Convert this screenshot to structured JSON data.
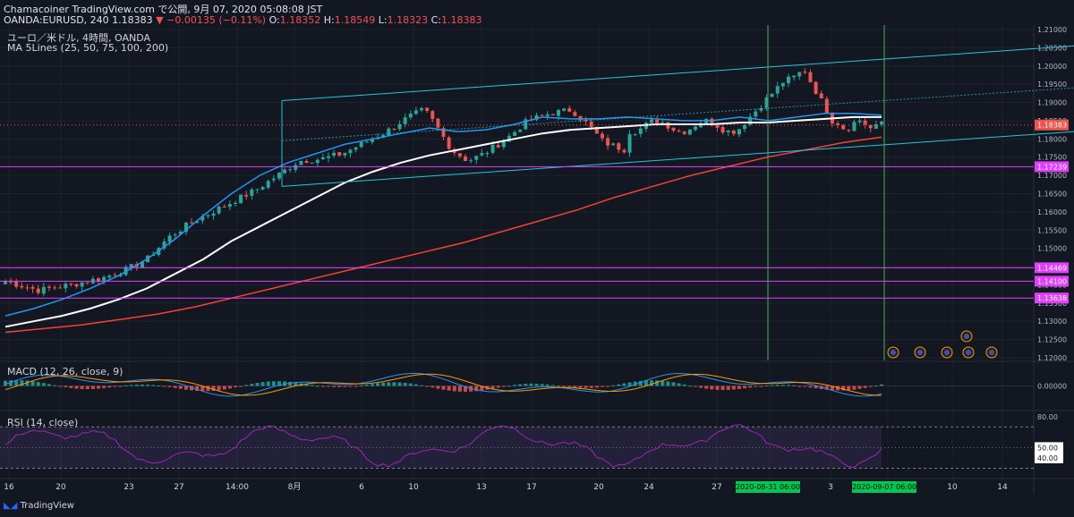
{
  "header": {
    "line1": "Chamacoiner TradingView.com で公開, 9月 07, 2020 05:08:08 JST",
    "symbol": "OANDA:EURUSD, 240",
    "last": "1.18383",
    "change": "▼ −0.00135 (−0.11%)",
    "o_label": "O:",
    "o": "1.18352",
    "h_label": "H:",
    "h": "1.18549",
    "l_label": "L:",
    "l": "1.18323",
    "c_label": "C:",
    "c": "1.18383"
  },
  "main": {
    "title": "ユーロ／米ドル, 4時間, OANDA",
    "indicator": "MA 5Lines (25, 50, 75, 100, 200)"
  },
  "macd_label": "MACD (12, 26, close, 9)",
  "rsi_label": "RSI (14, close)",
  "footer": {
    "brand": "TradingView"
  },
  "colors": {
    "background": "#131722",
    "up": "#26a69a",
    "down": "#ef5350",
    "ma_blue": "#2196f3",
    "ma_white": "#ffffff",
    "ma_red": "#f44336",
    "channel": "#26c6da",
    "horizontal": "#e040fb",
    "vertical": "#4caf50",
    "rsi": "#9c27b0"
  },
  "chart_data": [
    {
      "type": "candlestick",
      "name": "price",
      "y_ticks": [
        "1.21000",
        "1.20500",
        "1.20000",
        "1.19500",
        "1.19000",
        "1.18500",
        "1.18000",
        "1.17500",
        "1.17000",
        "1.16500",
        "1.16000",
        "1.15500",
        "1.15000",
        "1.14500",
        "1.14000",
        "1.13500",
        "1.13000",
        "1.12500",
        "1.12000"
      ],
      "ylim": [
        1.12,
        1.21
      ],
      "x_ticks": [
        "16",
        "20",
        "23",
        "27",
        "14:00",
        "8月",
        "6",
        "10",
        "13",
        "17",
        "20",
        "24",
        "27",
        "31",
        "3",
        "7",
        "10",
        "14"
      ],
      "last_price": "1.18383",
      "horizontal_levels": [
        {
          "value": 1.17239,
          "label": "1.17239"
        },
        {
          "value": 1.14469,
          "label": "1.14469"
        },
        {
          "value": 1.141,
          "label": "1.14100"
        },
        {
          "value": 1.13638,
          "label": "1.13638"
        }
      ],
      "vertical_markers": [
        "2020-08-31  06:00",
        "2020-09-07  06:00"
      ],
      "ma_series": [
        {
          "color": "#2196f3",
          "values": [
            1.1315,
            1.1335,
            1.136,
            1.139,
            1.1425,
            1.147,
            1.1525,
            1.159,
            1.165,
            1.17,
            1.1735,
            1.176,
            1.1785,
            1.18,
            1.1815,
            1.183,
            1.182,
            1.1825,
            1.184,
            1.186,
            1.1855,
            1.1855,
            1.186,
            1.1855,
            1.185,
            1.185,
            1.186,
            1.185,
            1.186,
            1.187,
            1.187,
            1.1865
          ]
        },
        {
          "color": "#ffffff",
          "values": [
            1.1285,
            1.13,
            1.1315,
            1.1335,
            1.136,
            1.139,
            1.143,
            1.147,
            1.152,
            1.156,
            1.16,
            1.164,
            1.168,
            1.171,
            1.1735,
            1.1755,
            1.177,
            1.1785,
            1.18,
            1.1815,
            1.1825,
            1.183,
            1.1835,
            1.184,
            1.184,
            1.184,
            1.1845,
            1.1845,
            1.185,
            1.1855,
            1.186,
            1.186
          ]
        },
        {
          "color": "#f44336",
          "values": [
            1.127,
            1.128,
            1.129,
            1.1305,
            1.132,
            1.134,
            1.1365,
            1.139,
            1.1415,
            1.144,
            1.1465,
            1.149,
            1.1515,
            1.1545,
            1.1575,
            1.1605,
            1.164,
            1.167,
            1.17,
            1.1725,
            1.175,
            1.177,
            1.179,
            1.1805
          ]
        }
      ]
    },
    {
      "type": "bar",
      "name": "macd",
      "y_ticks": [
        "0.00000"
      ],
      "ylim": [
        -0.006,
        0.006
      ]
    },
    {
      "type": "line",
      "name": "rsi",
      "y_ticks": [
        "80.00",
        "50.00",
        "40.00"
      ],
      "ylim": [
        20,
        85
      ],
      "value_label": "50.00",
      "value_label2": "40.00"
    }
  ]
}
